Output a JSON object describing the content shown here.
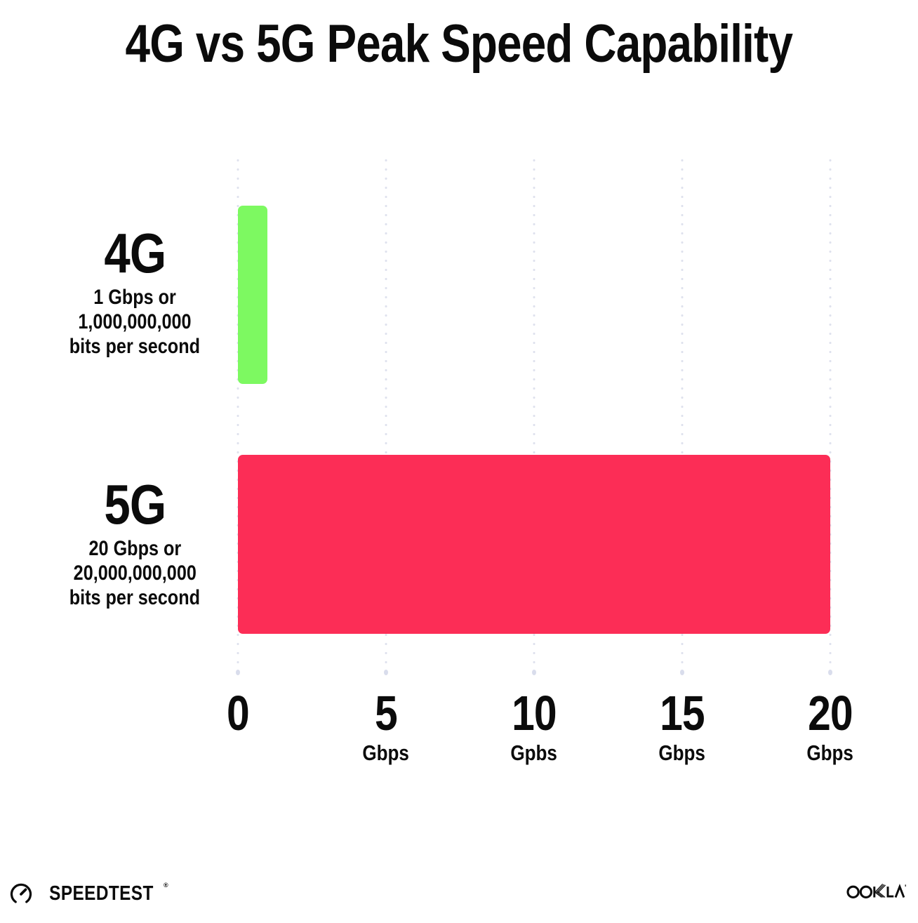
{
  "title": "4G vs 5G Peak Speed Capability",
  "chart_data": {
    "type": "bar",
    "orientation": "horizontal",
    "title": "4G vs 5G Peak Speed Capability",
    "categories": [
      "4G",
      "5G"
    ],
    "values": [
      1,
      20
    ],
    "bar_colors": [
      "#7DF961",
      "#FC2D56"
    ],
    "row_descriptions": [
      [
        "1 Gbps or",
        "1,000,000,000",
        "bits per second"
      ],
      [
        "20 Gbps or",
        "20,000,000,000",
        "bits per second"
      ]
    ],
    "xlabel": "Gbps",
    "ylabel": "",
    "xlim": [
      0,
      20
    ],
    "x_ticks": [
      {
        "num": "0",
        "unit": ""
      },
      {
        "num": "5",
        "unit": "Gbps"
      },
      {
        "num": "10",
        "unit": "Gpbs"
      },
      {
        "num": "15",
        "unit": "Gbps"
      },
      {
        "num": "20",
        "unit": "Gbps"
      }
    ],
    "grid": "dotted-vertical-gridlines",
    "legend": "none"
  },
  "footer": {
    "speedtest_label": "SPEEDTEST",
    "speedtest_mark": "®",
    "speedtest_icon": "gauge-icon",
    "ookla_label": "OOKLA",
    "ookla_mark": "®"
  },
  "colors": {
    "background": "#FFFFFF",
    "text": "#0B0B0B",
    "grid_dots": "#DFE2EE",
    "bar_4g_green": "#7DF961",
    "bar_5g_pink": "#FC2D56"
  }
}
